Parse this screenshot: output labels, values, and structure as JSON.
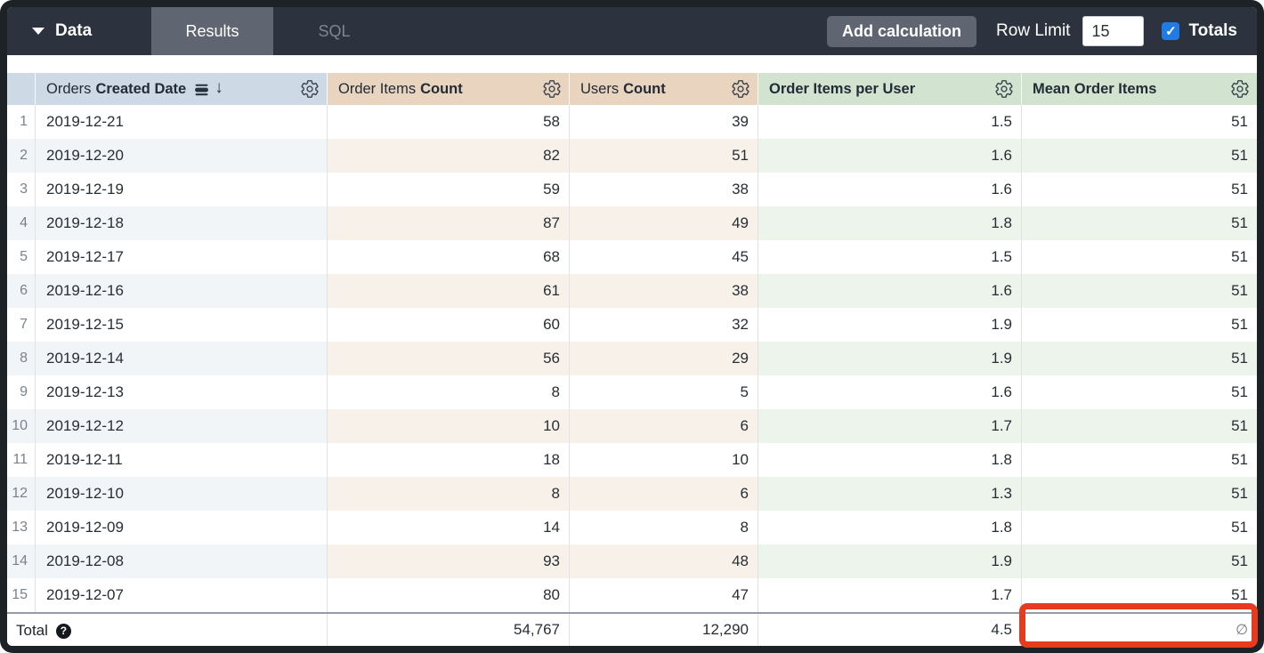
{
  "topbar": {
    "data_label": "Data",
    "tabs": [
      {
        "label": "Results",
        "active": true
      },
      {
        "label": "SQL",
        "active": false
      }
    ],
    "add_calculation": "Add calculation",
    "row_limit_label": "Row Limit",
    "row_limit_value": "15",
    "totals_label": "Totals",
    "totals_checked": true
  },
  "table": {
    "columns": [
      {
        "view": "Orders",
        "field": "Created Date",
        "type": "dimension",
        "sort": "desc"
      },
      {
        "view": "Order Items",
        "field": "Count",
        "type": "measure"
      },
      {
        "view": "Users",
        "field": "Count",
        "type": "measure"
      },
      {
        "view": "",
        "field": "Order Items per User",
        "type": "table_calculation"
      },
      {
        "view": "",
        "field": "Mean Order Items",
        "type": "table_calculation"
      }
    ],
    "rows": [
      {
        "n": "1",
        "date": "2019-12-21",
        "c1": "58",
        "c2": "39",
        "c3": "1.5",
        "c4": "51"
      },
      {
        "n": "2",
        "date": "2019-12-20",
        "c1": "82",
        "c2": "51",
        "c3": "1.6",
        "c4": "51"
      },
      {
        "n": "3",
        "date": "2019-12-19",
        "c1": "59",
        "c2": "38",
        "c3": "1.6",
        "c4": "51"
      },
      {
        "n": "4",
        "date": "2019-12-18",
        "c1": "87",
        "c2": "49",
        "c3": "1.8",
        "c4": "51"
      },
      {
        "n": "5",
        "date": "2019-12-17",
        "c1": "68",
        "c2": "45",
        "c3": "1.5",
        "c4": "51"
      },
      {
        "n": "6",
        "date": "2019-12-16",
        "c1": "61",
        "c2": "38",
        "c3": "1.6",
        "c4": "51"
      },
      {
        "n": "7",
        "date": "2019-12-15",
        "c1": "60",
        "c2": "32",
        "c3": "1.9",
        "c4": "51"
      },
      {
        "n": "8",
        "date": "2019-12-14",
        "c1": "56",
        "c2": "29",
        "c3": "1.9",
        "c4": "51"
      },
      {
        "n": "9",
        "date": "2019-12-13",
        "c1": "8",
        "c2": "5",
        "c3": "1.6",
        "c4": "51"
      },
      {
        "n": "10",
        "date": "2019-12-12",
        "c1": "10",
        "c2": "6",
        "c3": "1.7",
        "c4": "51"
      },
      {
        "n": "11",
        "date": "2019-12-11",
        "c1": "18",
        "c2": "10",
        "c3": "1.8",
        "c4": "51"
      },
      {
        "n": "12",
        "date": "2019-12-10",
        "c1": "8",
        "c2": "6",
        "c3": "1.3",
        "c4": "51"
      },
      {
        "n": "13",
        "date": "2019-12-09",
        "c1": "14",
        "c2": "8",
        "c3": "1.8",
        "c4": "51"
      },
      {
        "n": "14",
        "date": "2019-12-08",
        "c1": "93",
        "c2": "48",
        "c3": "1.9",
        "c4": "51"
      },
      {
        "n": "15",
        "date": "2019-12-07",
        "c1": "80",
        "c2": "47",
        "c3": "1.7",
        "c4": "51"
      }
    ],
    "total": {
      "label": "Total",
      "c1": "54,767",
      "c2": "12,290",
      "c3": "4.5",
      "c4": "∅"
    }
  },
  "colors": {
    "topbar_bg": "#2c333e",
    "active_tab_bg": "#5f6672",
    "checkbox_blue": "#1e7be8",
    "dimension_header": "#cdd9e4",
    "measure_header": "#e9d5bf",
    "calc_header": "#d2e4cf",
    "annotation_red": "#e63b1f"
  }
}
